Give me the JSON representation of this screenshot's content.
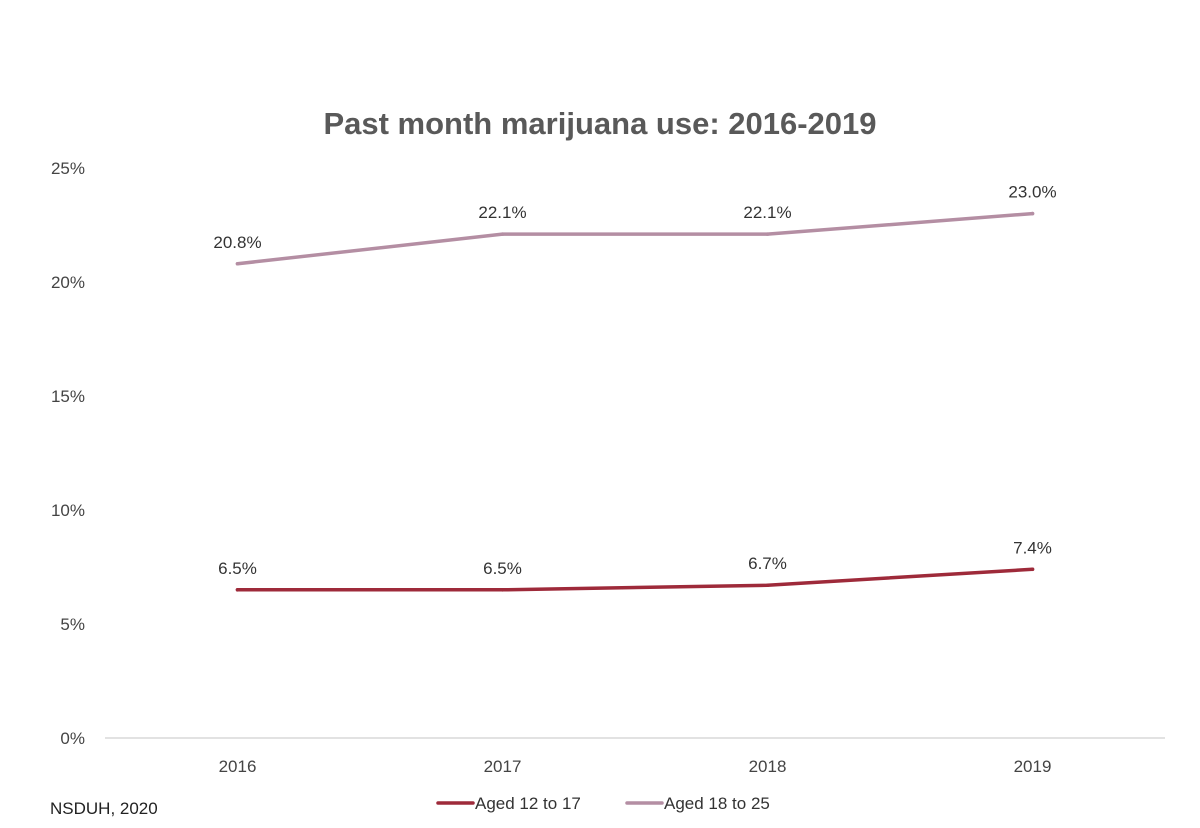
{
  "chart_data": {
    "type": "line",
    "title": "Past month marijuana use: 2016-2019",
    "categories": [
      "2016",
      "2017",
      "2018",
      "2019"
    ],
    "series": [
      {
        "name": "Aged 12 to 17",
        "values": [
          6.5,
          6.5,
          6.7,
          7.4
        ],
        "labels": [
          "6.5%",
          "6.5%",
          "6.7%",
          "7.4%"
        ],
        "color": "#9e2a3a"
      },
      {
        "name": "Aged 18 to 25",
        "values": [
          20.8,
          22.1,
          22.1,
          23.0
        ],
        "labels": [
          "20.8%",
          "22.1%",
          "22.1%",
          "23.0%"
        ],
        "color": "#b48ea3"
      }
    ],
    "yticks": [
      "0%",
      "5%",
      "10%",
      "15%",
      "20%",
      "25%"
    ],
    "ylim": [
      0,
      25
    ],
    "grid": false,
    "legend_position": "bottom"
  },
  "source_note": "NSDUH, 2020"
}
